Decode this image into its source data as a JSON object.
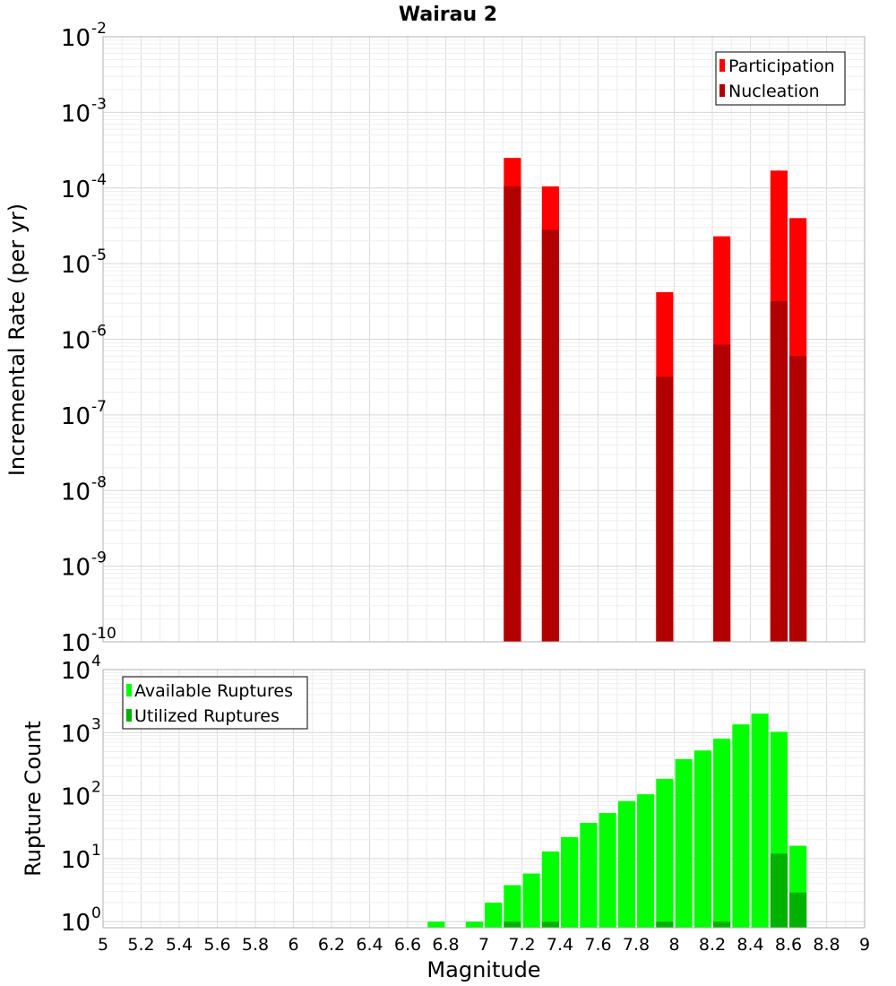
{
  "title": "Wairau 2",
  "chart_data": [
    {
      "type": "bar",
      "name": "rate-panel",
      "ylabel": "Incremental Rate (per yr)",
      "yscale": "log",
      "ylim": [
        1e-10,
        0.01
      ],
      "xlim": [
        5,
        9
      ],
      "grid": true,
      "legend_position": "top-right",
      "bar_width": 0.09,
      "series": [
        {
          "name": "Participation",
          "color": "#ff0000",
          "points": [
            [
              7.15,
              0.00025
            ],
            [
              7.35,
              0.000105
            ],
            [
              7.95,
              4.2e-06
            ],
            [
              8.25,
              2.3e-05
            ],
            [
              8.55,
              0.00017
            ],
            [
              8.65,
              4e-05
            ]
          ]
        },
        {
          "name": "Nucleation",
          "color": "#b20000",
          "points": [
            [
              7.15,
              0.000105
            ],
            [
              7.35,
              2.8e-05
            ],
            [
              7.95,
              3.2e-07
            ],
            [
              8.25,
              8.5e-07
            ],
            [
              8.55,
              3.2e-06
            ],
            [
              8.65,
              6e-07
            ]
          ]
        }
      ]
    },
    {
      "type": "bar",
      "name": "count-panel",
      "ylabel": "Rupture Count",
      "xlabel": "Magnitude",
      "yscale": "log",
      "ylim": [
        0.8,
        10000
      ],
      "xlim": [
        5,
        9
      ],
      "grid": true,
      "legend_position": "top-left",
      "bar_width": 0.09,
      "series": [
        {
          "name": "Available Ruptures",
          "color": "#00ff00",
          "points": [
            [
              6.75,
              1
            ],
            [
              6.95,
              1
            ],
            [
              7.05,
              2
            ],
            [
              7.15,
              3.8
            ],
            [
              7.25,
              5.8
            ],
            [
              7.35,
              13
            ],
            [
              7.45,
              22
            ],
            [
              7.55,
              37
            ],
            [
              7.65,
              53
            ],
            [
              7.75,
              82
            ],
            [
              7.85,
              105
            ],
            [
              7.95,
              185
            ],
            [
              8.05,
              380
            ],
            [
              8.15,
              520
            ],
            [
              8.25,
              800
            ],
            [
              8.35,
              1350
            ],
            [
              8.45,
              2000
            ],
            [
              8.55,
              1030
            ],
            [
              8.65,
              16
            ]
          ]
        },
        {
          "name": "Utilized Ruptures",
          "color": "#00b200",
          "points": [
            [
              7.15,
              1
            ],
            [
              7.35,
              1
            ],
            [
              7.95,
              1
            ],
            [
              8.25,
              1
            ],
            [
              8.55,
              12
            ],
            [
              8.65,
              2.9
            ]
          ]
        }
      ]
    }
  ],
  "x_ticks": [
    "5",
    "5.2",
    "5.4",
    "5.6",
    "5.8",
    "6",
    "6.2",
    "6.4",
    "6.6",
    "6.8",
    "7",
    "7.2",
    "7.4",
    "7.6",
    "7.8",
    "8",
    "8.2",
    "8.4",
    "8.6",
    "8.8",
    "9"
  ],
  "top_y_ticks": [
    {
      "base": "10",
      "exp": "-2"
    },
    {
      "base": "10",
      "exp": "-3"
    },
    {
      "base": "10",
      "exp": "-4"
    },
    {
      "base": "10",
      "exp": "-5"
    },
    {
      "base": "10",
      "exp": "-6"
    },
    {
      "base": "10",
      "exp": "-7"
    },
    {
      "base": "10",
      "exp": "-8"
    },
    {
      "base": "10",
      "exp": "-9"
    },
    {
      "base": "10",
      "exp": "-10"
    }
  ],
  "bottom_y_ticks": [
    {
      "base": "10",
      "exp": "4"
    },
    {
      "base": "10",
      "exp": "3"
    },
    {
      "base": "10",
      "exp": "2"
    },
    {
      "base": "10",
      "exp": "1"
    },
    {
      "base": "10",
      "exp": "0"
    }
  ]
}
